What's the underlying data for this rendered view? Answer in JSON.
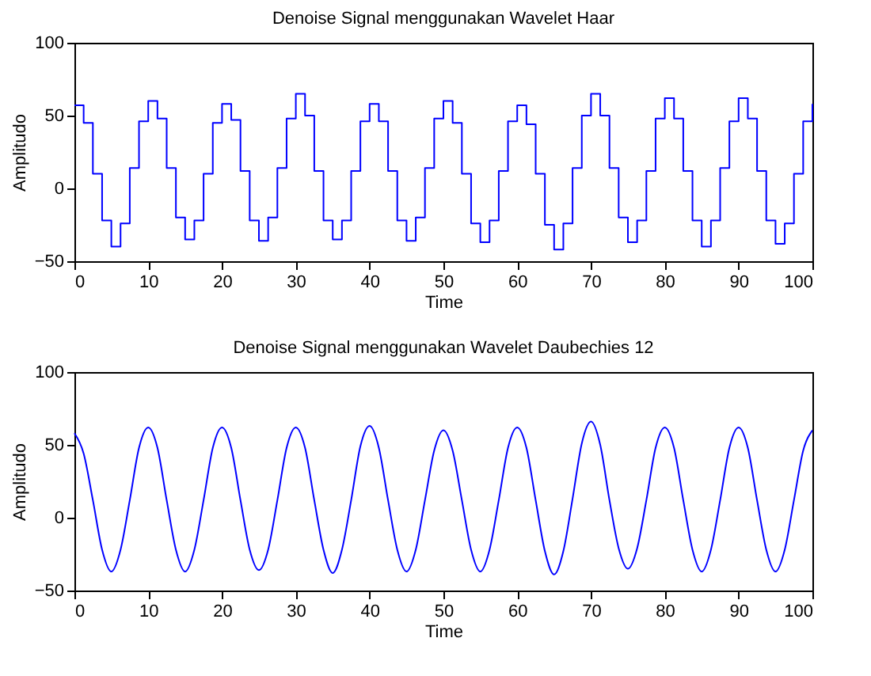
{
  "chart_data": [
    {
      "type": "step",
      "title": "Denoise Signal menggunakan Wavelet Haar",
      "xlabel": "Time",
      "ylabel": "Amplitudo",
      "xlim": [
        0,
        100
      ],
      "ylim": [
        -50,
        100
      ],
      "xticks": [
        0,
        10,
        20,
        30,
        40,
        50,
        60,
        70,
        80,
        90,
        100
      ],
      "yticks": [
        -50,
        0,
        50,
        100
      ],
      "grid": false,
      "legend": false,
      "x": [
        0,
        1.25,
        2.5,
        3.75,
        5,
        6.25,
        7.5,
        8.75,
        10,
        11.25,
        12.5,
        13.75,
        15,
        16.25,
        17.5,
        18.75,
        20,
        21.25,
        22.5,
        23.75,
        25,
        26.25,
        27.5,
        28.75,
        30,
        31.25,
        32.5,
        33.75,
        35,
        36.25,
        37.5,
        38.75,
        40,
        41.25,
        42.5,
        43.75,
        45,
        46.25,
        47.5,
        48.75,
        50,
        51.25,
        52.5,
        53.75,
        55,
        56.25,
        57.5,
        58.75,
        60,
        61.25,
        62.5,
        63.75,
        65,
        66.25,
        67.5,
        68.75,
        70,
        71.25,
        72.5,
        73.75,
        75,
        76.25,
        77.5,
        78.75,
        80,
        81.25,
        82.5,
        83.75,
        85,
        86.25,
        87.5,
        88.75,
        90,
        91.25,
        92.5,
        93.75,
        95,
        96.25,
        97.5,
        98.75,
        100
      ],
      "series": [
        {
          "color": "#0000ff",
          "values": [
            57,
            45,
            10,
            -22,
            -40,
            -24,
            14,
            46,
            60,
            48,
            14,
            -20,
            -35,
            -22,
            10,
            45,
            58,
            47,
            12,
            -22,
            -36,
            -20,
            14,
            48,
            65,
            50,
            12,
            -22,
            -35,
            -22,
            12,
            46,
            58,
            46,
            12,
            -22,
            -36,
            -20,
            14,
            48,
            60,
            45,
            10,
            -24,
            -37,
            -22,
            12,
            46,
            57,
            44,
            10,
            -25,
            -42,
            -24,
            14,
            50,
            65,
            50,
            14,
            -20,
            -37,
            -22,
            12,
            48,
            62,
            48,
            12,
            -22,
            -40,
            -22,
            14,
            46,
            62,
            48,
            12,
            -22,
            -38,
            -24,
            10,
            46,
            58
          ]
        }
      ]
    },
    {
      "type": "line",
      "title": "Denoise Signal menggunakan Wavelet Daubechies 12",
      "xlabel": "Time",
      "ylabel": "Amplitudo",
      "xlim": [
        0,
        100
      ],
      "ylim": [
        -50,
        100
      ],
      "xticks": [
        0,
        10,
        20,
        30,
        40,
        50,
        60,
        70,
        80,
        90,
        100
      ],
      "yticks": [
        -50,
        0,
        50,
        100
      ],
      "grid": false,
      "legend": false,
      "x": [
        0,
        1.25,
        2.5,
        3.75,
        5,
        6.25,
        7.5,
        8.75,
        10,
        11.25,
        12.5,
        13.75,
        15,
        16.25,
        17.5,
        18.75,
        20,
        21.25,
        22.5,
        23.75,
        25,
        26.25,
        27.5,
        28.75,
        30,
        31.25,
        32.5,
        33.75,
        35,
        36.25,
        37.5,
        38.75,
        40,
        41.25,
        42.5,
        43.75,
        45,
        46.25,
        47.5,
        48.75,
        50,
        51.25,
        52.5,
        53.75,
        55,
        56.25,
        57.5,
        58.75,
        60,
        61.25,
        62.5,
        63.75,
        65,
        66.25,
        67.5,
        68.75,
        70,
        71.25,
        72.5,
        73.75,
        75,
        76.25,
        77.5,
        78.75,
        80,
        81.25,
        82.5,
        83.75,
        85,
        86.25,
        87.5,
        88.75,
        90,
        91.25,
        92.5,
        93.75,
        95,
        96.25,
        97.5,
        98.75,
        100
      ],
      "series": [
        {
          "color": "#0000ff",
          "values": [
            58,
            44,
            12,
            -22,
            -37,
            -22,
            12,
            48,
            62,
            48,
            12,
            -22,
            -37,
            -22,
            12,
            48,
            62,
            48,
            12,
            -22,
            -36,
            -22,
            12,
            48,
            62,
            48,
            12,
            -22,
            -38,
            -22,
            12,
            49,
            63,
            48,
            12,
            -22,
            -37,
            -22,
            12,
            46,
            60,
            46,
            12,
            -22,
            -37,
            -22,
            12,
            48,
            62,
            48,
            12,
            -23,
            -39,
            -23,
            13,
            51,
            66,
            50,
            12,
            -21,
            -35,
            -21,
            12,
            48,
            62,
            48,
            12,
            -22,
            -37,
            -22,
            12,
            48,
            62,
            48,
            12,
            -22,
            -37,
            -22,
            12,
            46,
            60
          ]
        }
      ]
    }
  ]
}
